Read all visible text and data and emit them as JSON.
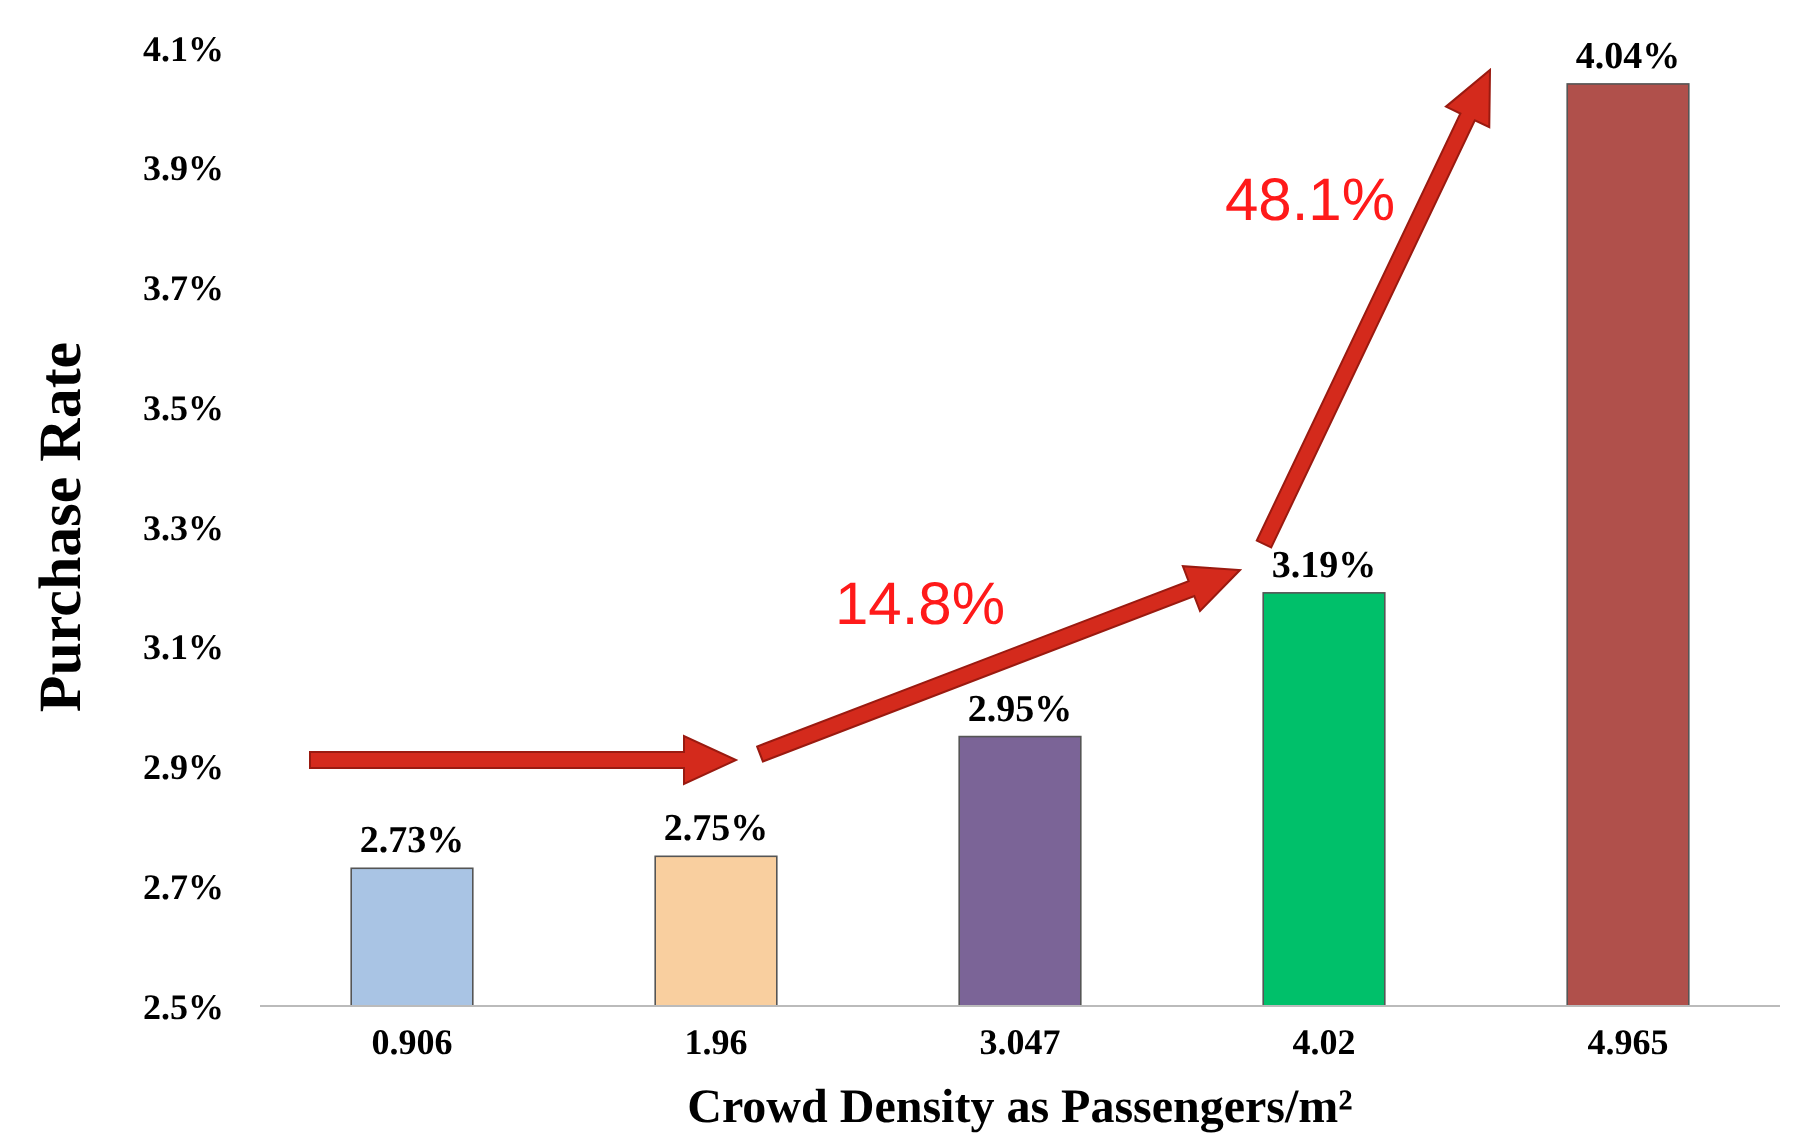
{
  "chart_data": {
    "type": "bar",
    "categories": [
      "0.906",
      "1.96",
      "3.047",
      "4.02",
      "4.965"
    ],
    "values": [
      2.73,
      2.75,
      2.95,
      3.19,
      4.04
    ],
    "colors": [
      "#a9c4e4",
      "#f9cf9f",
      "#7b6497",
      "#00c06a",
      "#b0504b"
    ],
    "value_labels": [
      "2.73%",
      "2.75%",
      "2.95%",
      "3.19%",
      "4.04%"
    ],
    "xlabel": "Crowd Density as Passengers/m²",
    "ylabel": "Purchase Rate",
    "ylim": [
      2.5,
      4.1
    ],
    "yticks": [
      {
        "value": 2.5,
        "label": "2.5%"
      },
      {
        "value": 2.7,
        "label": "2.7%"
      },
      {
        "value": 2.9,
        "label": "2.9%"
      },
      {
        "value": 3.1,
        "label": "3.1%"
      },
      {
        "value": 3.3,
        "label": "3.3%"
      },
      {
        "value": 3.5,
        "label": "3.5%"
      },
      {
        "value": 3.7,
        "label": "3.7%"
      },
      {
        "value": 3.9,
        "label": "3.9%"
      },
      {
        "value": 4.1,
        "label": "4.1%"
      }
    ],
    "annotations": [
      "14.8%",
      "48.1%"
    ],
    "grid": false
  }
}
